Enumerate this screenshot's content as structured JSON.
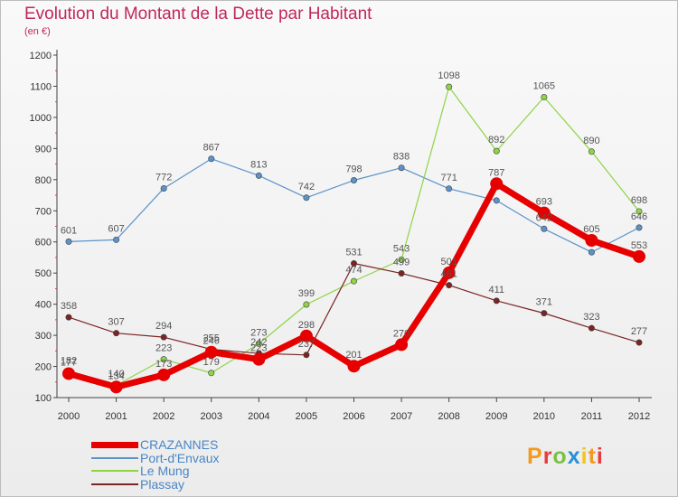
{
  "header": {
    "title": "Evolution du Montant de la Dette par Habitant",
    "subtitle": "(en €)"
  },
  "logo": {
    "text": "Proxiti",
    "colors": [
      "#f39a1e",
      "#e93b3b",
      "#7ac143",
      "#2b8fd6",
      "#f5c518"
    ]
  },
  "chart_data": {
    "type": "line",
    "categories": [
      "2000",
      "2001",
      "2002",
      "2003",
      "2004",
      "2005",
      "2006",
      "2007",
      "2008",
      "2009",
      "2010",
      "2011",
      "2012"
    ],
    "ylim": [
      100,
      1200
    ],
    "yticks": [
      100,
      200,
      300,
      400,
      500,
      600,
      700,
      800,
      900,
      1000,
      1100,
      1200
    ],
    "grid": false,
    "legend_position": "bottom-left",
    "series": [
      {
        "name": "CRAZANNES",
        "color": "#e60000",
        "width": 7,
        "values": [
          177,
          134,
          173,
          246,
          223,
          298,
          201,
          270,
          501,
          787,
          693,
          605,
          553
        ],
        "labels": [
          "177",
          "134",
          "173",
          "246",
          "223",
          "298",
          "201",
          "270",
          "501",
          "787",
          "693",
          "605",
          "553"
        ]
      },
      {
        "name": "Port-d'Envaux",
        "color": "#5b93c9",
        "width": 1.2,
        "values": [
          601,
          607,
          772,
          867,
          813,
          742,
          798,
          838,
          771,
          733,
          642,
          567,
          646
        ],
        "labels": [
          "601",
          "607",
          "772",
          "867",
          "813",
          "742",
          "798",
          "838",
          "771",
          "",
          "642",
          "",
          "646"
        ]
      },
      {
        "name": "Le Mung",
        "color": "#8fd444",
        "width": 1.2,
        "values": [
          182,
          140,
          223,
          179,
          273,
          399,
          474,
          543,
          1098,
          892,
          1065,
          890,
          698
        ],
        "labels": [
          "182",
          "140",
          "223",
          "179",
          "273",
          "399",
          "474",
          "543",
          "1098",
          "892",
          "1065",
          "890",
          "698"
        ]
      },
      {
        "name": "Plassay",
        "color": "#7a2424",
        "width": 1.2,
        "values": [
          358,
          307,
          294,
          255,
          242,
          237,
          531,
          499,
          461,
          411,
          371,
          323,
          277
        ],
        "labels": [
          "358",
          "307",
          "294",
          "255",
          "242",
          "237",
          "531",
          "499",
          "461",
          "411",
          "371",
          "323",
          "277"
        ]
      }
    ]
  }
}
